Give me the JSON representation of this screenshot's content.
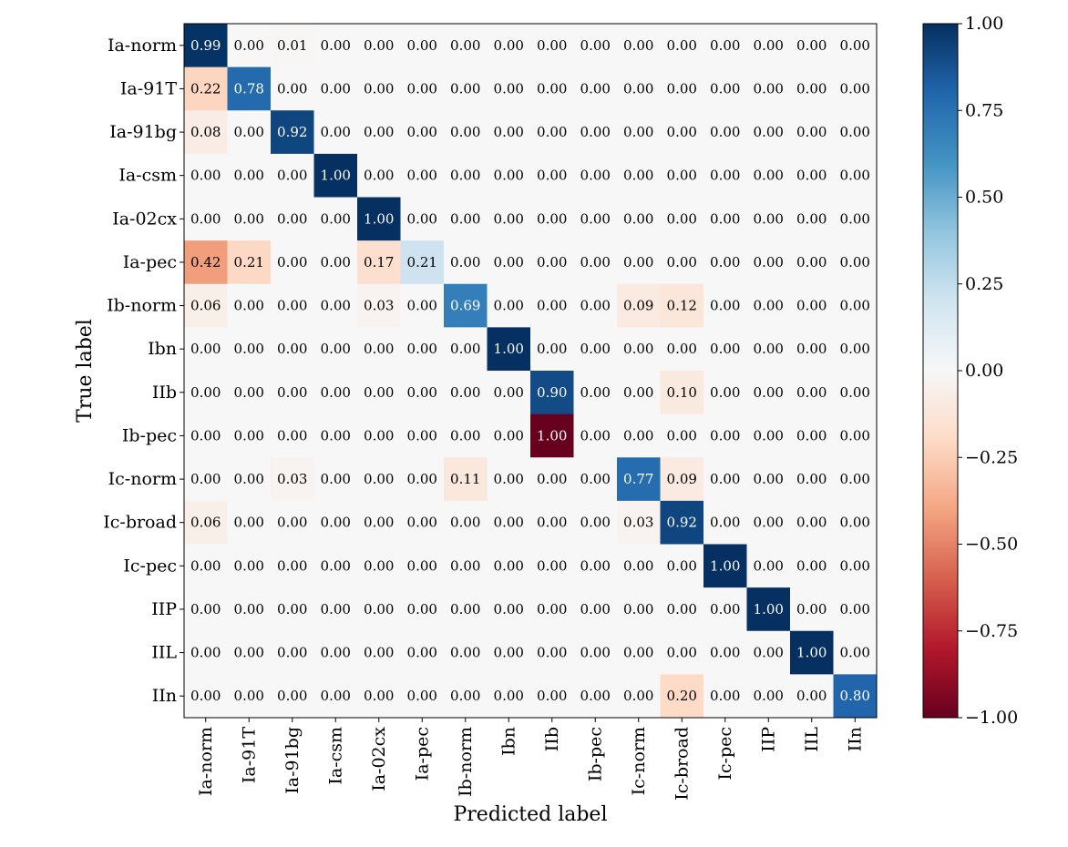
{
  "chart_data": {
    "type": "heatmap",
    "title": "",
    "xlabel": "Predicted label",
    "ylabel": "True label",
    "row_labels": [
      "Ia-norm",
      "Ia-91T",
      "Ia-91bg",
      "Ia-csm",
      "Ia-02cx",
      "Ia-pec",
      "Ib-norm",
      "Ibn",
      "IIb",
      "Ib-pec",
      "Ic-norm",
      "Ic-broad",
      "Ic-pec",
      "IIP",
      "IIL",
      "IIn"
    ],
    "col_labels": [
      "Ia-norm",
      "Ia-91T",
      "Ia-91bg",
      "Ia-csm",
      "Ia-02cx",
      "Ia-pec",
      "Ib-norm",
      "Ibn",
      "IIb",
      "Ib-pec",
      "Ic-norm",
      "Ic-broad",
      "Ic-pec",
      "IIP",
      "IIL",
      "IIn"
    ],
    "values": [
      [
        0.99,
        0.0,
        0.01,
        0.0,
        0.0,
        0.0,
        0.0,
        0.0,
        0.0,
        0.0,
        0.0,
        0.0,
        0.0,
        0.0,
        0.0,
        0.0
      ],
      [
        0.22,
        0.78,
        0.0,
        0.0,
        0.0,
        0.0,
        0.0,
        0.0,
        0.0,
        0.0,
        0.0,
        0.0,
        0.0,
        0.0,
        0.0,
        0.0
      ],
      [
        0.08,
        0.0,
        0.92,
        0.0,
        0.0,
        0.0,
        0.0,
        0.0,
        0.0,
        0.0,
        0.0,
        0.0,
        0.0,
        0.0,
        0.0,
        0.0
      ],
      [
        0.0,
        0.0,
        0.0,
        1.0,
        0.0,
        0.0,
        0.0,
        0.0,
        0.0,
        0.0,
        0.0,
        0.0,
        0.0,
        0.0,
        0.0,
        0.0
      ],
      [
        0.0,
        0.0,
        0.0,
        0.0,
        1.0,
        0.0,
        0.0,
        0.0,
        0.0,
        0.0,
        0.0,
        0.0,
        0.0,
        0.0,
        0.0,
        0.0
      ],
      [
        0.42,
        0.21,
        0.0,
        0.0,
        0.17,
        0.21,
        0.0,
        0.0,
        0.0,
        0.0,
        0.0,
        0.0,
        0.0,
        0.0,
        0.0,
        0.0
      ],
      [
        0.06,
        0.0,
        0.0,
        0.0,
        0.03,
        0.0,
        0.69,
        0.0,
        0.0,
        0.0,
        0.09,
        0.12,
        0.0,
        0.0,
        0.0,
        0.0
      ],
      [
        0.0,
        0.0,
        0.0,
        0.0,
        0.0,
        0.0,
        0.0,
        1.0,
        0.0,
        0.0,
        0.0,
        0.0,
        0.0,
        0.0,
        0.0,
        0.0
      ],
      [
        0.0,
        0.0,
        0.0,
        0.0,
        0.0,
        0.0,
        0.0,
        0.0,
        0.9,
        0.0,
        0.0,
        0.1,
        0.0,
        0.0,
        0.0,
        0.0
      ],
      [
        0.0,
        0.0,
        0.0,
        0.0,
        0.0,
        0.0,
        0.0,
        0.0,
        1.0,
        0.0,
        0.0,
        0.0,
        0.0,
        0.0,
        0.0,
        0.0
      ],
      [
        0.0,
        0.0,
        0.03,
        0.0,
        0.0,
        0.0,
        0.11,
        0.0,
        0.0,
        0.0,
        0.77,
        0.09,
        0.0,
        0.0,
        0.0,
        0.0
      ],
      [
        0.06,
        0.0,
        0.0,
        0.0,
        0.0,
        0.0,
        0.0,
        0.0,
        0.0,
        0.0,
        0.03,
        0.92,
        0.0,
        0.0,
        0.0,
        0.0
      ],
      [
        0.0,
        0.0,
        0.0,
        0.0,
        0.0,
        0.0,
        0.0,
        0.0,
        0.0,
        0.0,
        0.0,
        0.0,
        1.0,
        0.0,
        0.0,
        0.0
      ],
      [
        0.0,
        0.0,
        0.0,
        0.0,
        0.0,
        0.0,
        0.0,
        0.0,
        0.0,
        0.0,
        0.0,
        0.0,
        0.0,
        1.0,
        0.0,
        0.0
      ],
      [
        0.0,
        0.0,
        0.0,
        0.0,
        0.0,
        0.0,
        0.0,
        0.0,
        0.0,
        0.0,
        0.0,
        0.0,
        0.0,
        0.0,
        1.0,
        0.0
      ],
      [
        0.0,
        0.0,
        0.0,
        0.0,
        0.0,
        0.0,
        0.0,
        0.0,
        0.0,
        0.0,
        0.0,
        0.2,
        0.0,
        0.0,
        0.0,
        0.8
      ]
    ],
    "color_sign": [
      [
        1,
        0,
        -1,
        0,
        0,
        0,
        0,
        0,
        0,
        0,
        0,
        0,
        0,
        0,
        0,
        0
      ],
      [
        -1,
        1,
        0,
        0,
        0,
        0,
        0,
        0,
        0,
        0,
        0,
        0,
        0,
        0,
        0,
        0
      ],
      [
        -1,
        0,
        1,
        0,
        0,
        0,
        0,
        0,
        0,
        0,
        0,
        0,
        0,
        0,
        0,
        0
      ],
      [
        0,
        0,
        0,
        1,
        0,
        0,
        0,
        0,
        0,
        0,
        0,
        0,
        0,
        0,
        0,
        0
      ],
      [
        0,
        0,
        0,
        0,
        1,
        0,
        0,
        0,
        0,
        0,
        0,
        0,
        0,
        0,
        0,
        0
      ],
      [
        -1,
        -1,
        0,
        0,
        -1,
        1,
        0,
        0,
        0,
        0,
        0,
        0,
        0,
        0,
        0,
        0
      ],
      [
        -1,
        0,
        0,
        0,
        -1,
        0,
        1,
        0,
        0,
        0,
        -1,
        -1,
        0,
        0,
        0,
        0
      ],
      [
        0,
        0,
        0,
        0,
        0,
        0,
        0,
        1,
        0,
        0,
        0,
        0,
        0,
        0,
        0,
        0
      ],
      [
        0,
        0,
        0,
        0,
        0,
        0,
        0,
        0,
        1,
        0,
        0,
        -1,
        0,
        0,
        0,
        0
      ],
      [
        0,
        0,
        0,
        0,
        0,
        0,
        0,
        0,
        -1,
        0,
        0,
        0,
        0,
        0,
        0,
        0
      ],
      [
        0,
        0,
        -1,
        0,
        0,
        0,
        -1,
        0,
        0,
        0,
        1,
        -1,
        0,
        0,
        0,
        0
      ],
      [
        -1,
        0,
        0,
        0,
        0,
        0,
        0,
        0,
        0,
        0,
        -1,
        1,
        0,
        0,
        0,
        0
      ],
      [
        0,
        0,
        0,
        0,
        0,
        0,
        0,
        0,
        0,
        0,
        0,
        0,
        1,
        0,
        0,
        0
      ],
      [
        0,
        0,
        0,
        0,
        0,
        0,
        0,
        0,
        0,
        0,
        0,
        0,
        0,
        1,
        0,
        0
      ],
      [
        0,
        0,
        0,
        0,
        0,
        0,
        0,
        0,
        0,
        0,
        0,
        0,
        0,
        0,
        1,
        0
      ],
      [
        0,
        0,
        0,
        0,
        0,
        0,
        0,
        0,
        0,
        0,
        0,
        -1,
        0,
        0,
        0,
        1
      ]
    ],
    "colorbar": {
      "colormap": "RdBu",
      "vmin": -1.0,
      "vmax": 1.0,
      "ticks": [
        1.0,
        0.75,
        0.5,
        0.25,
        0.0,
        -0.25,
        -0.5,
        -0.75,
        -1.0
      ],
      "tick_labels": [
        "1.00",
        "0.75",
        "0.50",
        "0.25",
        "0.00",
        "−0.25",
        "−0.50",
        "−0.75",
        "−1.00"
      ]
    },
    "colors": {
      "dark_blue": "#053061",
      "dark_red": "#67001f",
      "neutral": "#f7f7f7"
    }
  }
}
